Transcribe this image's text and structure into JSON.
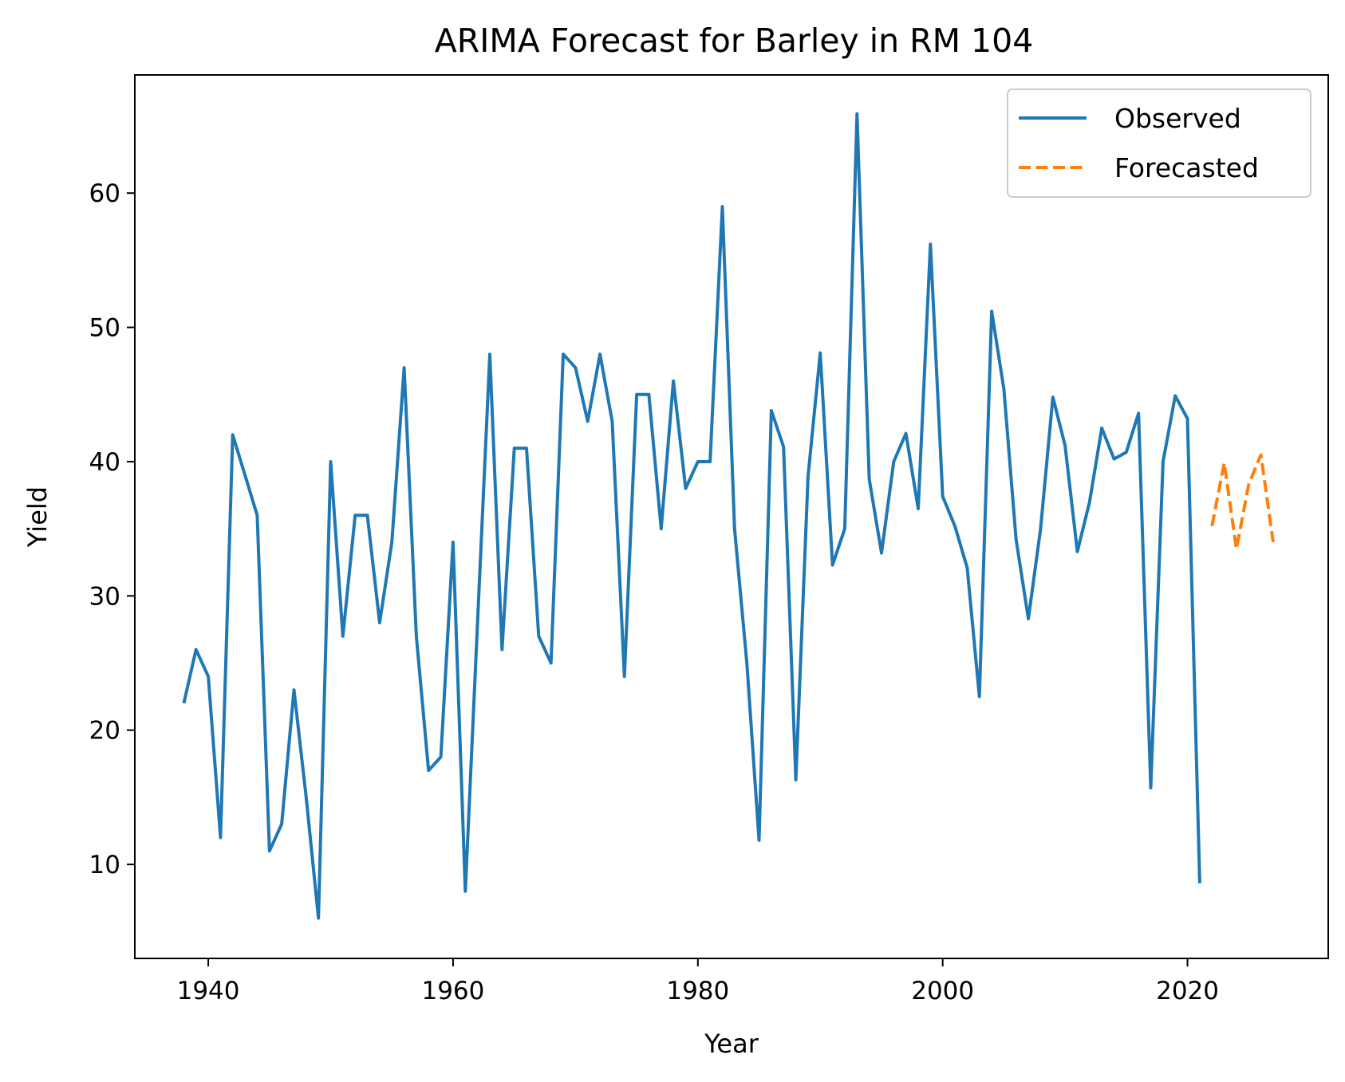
{
  "chart_data": {
    "type": "line",
    "title": "ARIMA Forecast for Barley in RM 104",
    "xlabel": "Year",
    "ylabel": "Yield",
    "xlim": [
      1934,
      2031.5
    ],
    "ylim": [
      3,
      68.8
    ],
    "xticks": [
      1940,
      1960,
      1980,
      2000,
      2020
    ],
    "yticks": [
      10,
      20,
      30,
      40,
      50,
      60
    ],
    "grid": false,
    "legend_position": "upper right",
    "series": [
      {
        "name": "Observed",
        "color": "#1f77b4",
        "style": "solid",
        "x": [
          1938,
          1939,
          1940,
          1941,
          1942,
          1943,
          1944,
          1945,
          1946,
          1947,
          1948,
          1949,
          1950,
          1951,
          1952,
          1953,
          1954,
          1955,
          1956,
          1957,
          1958,
          1959,
          1960,
          1961,
          1962,
          1963,
          1964,
          1965,
          1966,
          1967,
          1968,
          1969,
          1970,
          1971,
          1972,
          1973,
          1974,
          1975,
          1976,
          1977,
          1978,
          1979,
          1980,
          1981,
          1982,
          1983,
          1984,
          1985,
          1986,
          1987,
          1988,
          1989,
          1990,
          1991,
          1992,
          1993,
          1994,
          1995,
          1996,
          1997,
          1998,
          1999,
          2000,
          2001,
          2002,
          2003,
          2004,
          2005,
          2006,
          2007,
          2008,
          2009,
          2010,
          2011,
          2012,
          2013,
          2014,
          2015,
          2016,
          2017,
          2018,
          2019,
          2020,
          2021
        ],
        "y": [
          22,
          26,
          24,
          12,
          42,
          39,
          36,
          11,
          13,
          23,
          15,
          6,
          40,
          27,
          36,
          36,
          28,
          34,
          47,
          27,
          17,
          18,
          34,
          8,
          28,
          48,
          26,
          41,
          41,
          27,
          25,
          48,
          47,
          43,
          48,
          43,
          24,
          45,
          45,
          35,
          46,
          38,
          40,
          40,
          59,
          35,
          25,
          11.8,
          43.8,
          41.1,
          16.3,
          38.9,
          48.1,
          32.3,
          35,
          65.9,
          38.7,
          33.2,
          40,
          42.1,
          36.5,
          56.2,
          37.4,
          35.2,
          32.1,
          22.5,
          51.2,
          45.4,
          34.2,
          28.3,
          35,
          44.8,
          41.2,
          33.3,
          37,
          42.5,
          40.2,
          40.7,
          43.6,
          15.7,
          40,
          44.9,
          43.2,
          8.6
        ]
      },
      {
        "name": "Forecasted",
        "color": "#ff7f0e",
        "style": "dashed",
        "x": [
          2022,
          2023,
          2024,
          2025,
          2026,
          2027
        ],
        "y": [
          35.2,
          39.9,
          33.5,
          38.3,
          40.5,
          34
        ]
      }
    ]
  }
}
